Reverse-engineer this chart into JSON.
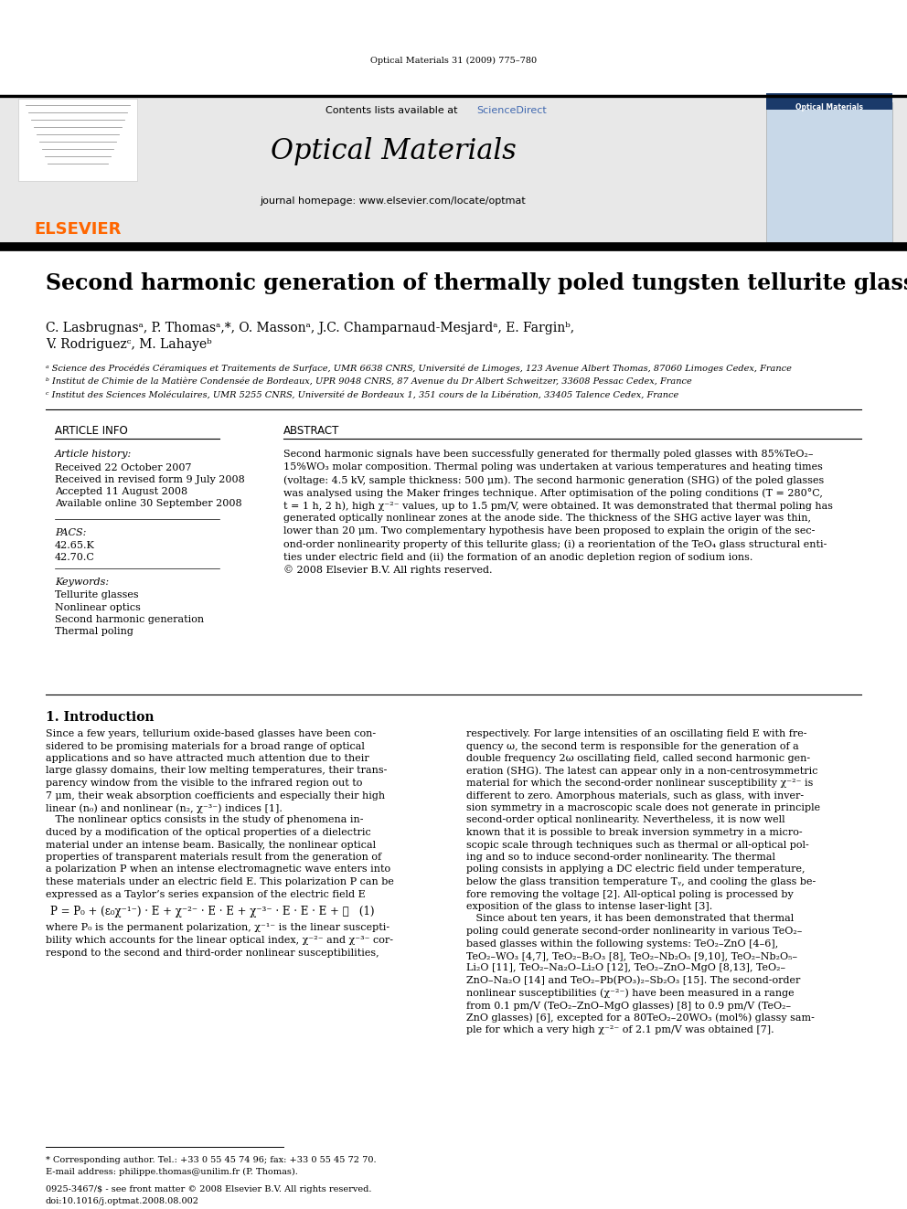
{
  "page_background": "#ffffff",
  "top_journal_ref": "Optical Materials 31 (2009) 775–780",
  "header_bg": "#e8e8e8",
  "header_sciencedirect_color": "#4169b0",
  "header_journal_name": "Optical Materials",
  "header_homepage": "journal homepage: www.elsevier.com/locate/optmat",
  "elsevier_color": "#ff6600",
  "title": "Second harmonic generation of thermally poled tungsten tellurite glass",
  "article_info_title": "ARTICLE INFO",
  "abstract_title": "ABSTRACT",
  "article_history_label": "Article history:",
  "received": "Received 22 October 2007",
  "revised": "Received in revised form 9 July 2008",
  "accepted": "Accepted 11 August 2008",
  "available": "Available online 30 September 2008",
  "pacs_label": "PACS:",
  "pacs1": "42.65.K",
  "pacs2": "42.70.C",
  "keywords_label": "Keywords:",
  "keywords": [
    "Tellurite glasses",
    "Nonlinear optics",
    "Second harmonic generation",
    "Thermal poling"
  ],
  "abstract_lines": [
    "Second harmonic signals have been successfully generated for thermally poled glasses with 85%TeO₂–",
    "15%WO₃ molar composition. Thermal poling was undertaken at various temperatures and heating times",
    "(voltage: 4.5 kV, sample thickness: 500 μm). The second harmonic generation (SHG) of the poled glasses",
    "was analysed using the Maker fringes technique. After optimisation of the poling conditions (T = 280°C,",
    "t = 1 h, 2 h), high χ⁻²⁻ values, up to 1.5 pm/V, were obtained. It was demonstrated that thermal poling has",
    "generated optically nonlinear zones at the anode side. The thickness of the SHG active layer was thin,",
    "lower than 20 μm. Two complementary hypothesis have been proposed to explain the origin of the sec-",
    "ond-order nonlinearity property of this tellurite glass; (i) a reorientation of the TeO₄ glass structural enti-",
    "ties under electric field and (ii) the formation of an anodic depletion region of sodium ions.",
    "© 2008 Elsevier B.V. All rights reserved."
  ],
  "intro_title": "1. Introduction",
  "intro_col1_lines": [
    "Since a few years, tellurium oxide-based glasses have been con-",
    "sidered to be promising materials for a broad range of optical",
    "applications and so have attracted much attention due to their",
    "large glassy domains, their low melting temperatures, their trans-",
    "parency window from the visible to the infrared region out to",
    "7 μm, their weak absorption coefficients and especially their high",
    "linear (n₀) and nonlinear (n₂, χ⁻³⁻) indices [1].",
    "   The nonlinear optics consists in the study of phenomena in-",
    "duced by a modification of the optical properties of a dielectric",
    "material under an intense beam. Basically, the nonlinear optical",
    "properties of transparent materials result from the generation of",
    "a polarization P when an intense electromagnetic wave enters into",
    "these materials under an electric field E. This polarization P can be",
    "expressed as a Taylor’s series expansion of the electric field E"
  ],
  "equation": "P = P₀ + (ε₀χ⁻¹⁻) · E + χ⁻²⁻ · E · E + χ⁻³⁻ · E · E · E + ⋯   (1)",
  "intro_col1_cont": [
    "where P₀ is the permanent polarization, χ⁻¹⁻ is the linear suscepti-",
    "bility which accounts for the linear optical index, χ⁻²⁻ and χ⁻³⁻ cor-",
    "respond to the second and third-order nonlinear susceptibilities,"
  ],
  "intro_col2_lines": [
    "respectively. For large intensities of an oscillating field E with fre-",
    "quency ω, the second term is responsible for the generation of a",
    "double frequency 2ω oscillating field, called second harmonic gen-",
    "eration (SHG). The latest can appear only in a non-centrosymmetric",
    "material for which the second-order nonlinear susceptibility χ⁻²⁻ is",
    "different to zero. Amorphous materials, such as glass, with inver-",
    "sion symmetry in a macroscopic scale does not generate in principle",
    "second-order optical nonlinearity. Nevertheless, it is now well",
    "known that it is possible to break inversion symmetry in a micro-",
    "scopic scale through techniques such as thermal or all-optical pol-",
    "ing and so to induce second-order nonlinearity. The thermal",
    "poling consists in applying a DC electric field under temperature,",
    "below the glass transition temperature Tᵧ, and cooling the glass be-",
    "fore removing the voltage [2]. All-optical poling is processed by",
    "exposition of the glass to intense laser-light [3].",
    "   Since about ten years, it has been demonstrated that thermal",
    "poling could generate second-order nonlinearity in various TeO₂–",
    "based glasses within the following systems: TeO₂–ZnO [4–6],",
    "TeO₂–WO₃ [4,7], TeO₂–B₂O₃ [8], TeO₂–Nb₂O₅ [9,10], TeO₂–Nb₂O₅–",
    "Li₂O [11], TeO₂–Na₂O–Li₂O [12], TeO₂–ZnO–MgO [8,13], TeO₂–",
    "ZnO–Na₂O [14] and TeO₂–Pb(PO₃)₂–Sb₂O₃ [15]. The second-order",
    "nonlinear susceptibilities (χ⁻²⁻) have been measured in a range",
    "from 0.1 pm/V (TeO₂–ZnO–MgO glasses) [8] to 0.9 pm/V (TeO₂–",
    "ZnO glasses) [6], excepted for a 80TeO₂–20WO₃ (mol%) glassy sam-",
    "ple for which a very high χ⁻²⁻ of 2.1 pm/V was obtained [7]."
  ],
  "footnote_star": "* Corresponding author. Tel.: +33 0 55 45 74 96; fax: +33 0 55 45 72 70.",
  "footnote_email": "E-mail address: philippe.thomas@unilim.fr (P. Thomas).",
  "issn_line": "0925-3467/$ - see front matter © 2008 Elsevier B.V. All rights reserved.",
  "doi_line": "doi:10.1016/j.optmat.2008.08.002"
}
